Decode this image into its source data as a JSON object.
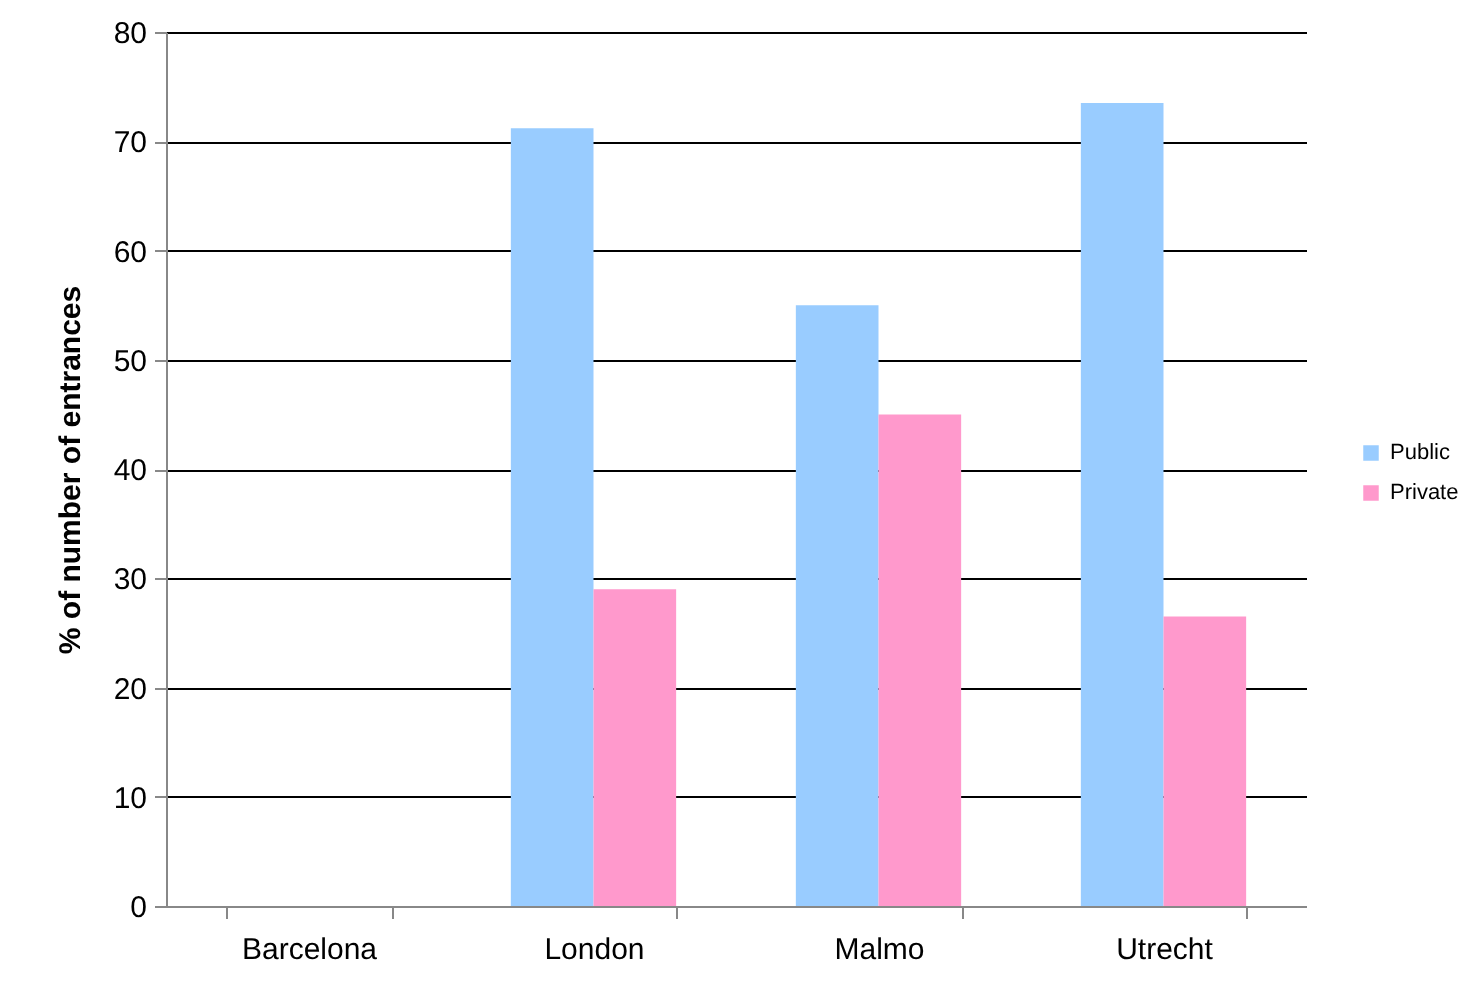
{
  "chart_data": {
    "type": "bar",
    "ylabel": "% of number of entrances",
    "categories": [
      "Barcelona",
      "London",
      "Malmo",
      "Utrecht"
    ],
    "series": [
      {
        "name": "Public",
        "color": "#99ccff",
        "values": [
          null,
          71.2,
          55,
          73.5
        ]
      },
      {
        "name": "Private",
        "color": "#ff99cc",
        "values": [
          null,
          29,
          45,
          26.5
        ]
      }
    ],
    "ylim": [
      0,
      80
    ],
    "yticks": [
      0,
      10,
      20,
      30,
      40,
      50,
      60,
      70,
      80
    ],
    "grid": "y",
    "legend": "right"
  }
}
